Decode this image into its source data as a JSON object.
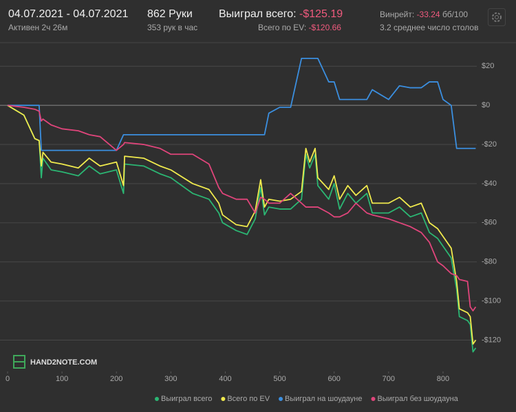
{
  "header": {
    "dates": "04.07.2021 - 04.07.2021",
    "active": "Активен 2ч 26м",
    "hands": "862 Руки",
    "rate": "353 рук в час",
    "won_label": "Выиграл всего:",
    "won_value": "-$125.19",
    "ev_label": "Всего по EV:",
    "ev_value": "-$120.66",
    "winrate_label": "Винрейт:",
    "winrate_value": "-33.24",
    "winrate_unit": "бб/100",
    "tables": "3.2 среднее число столов",
    "logo": "HAND2NOTE.COM"
  },
  "chart_data": {
    "type": "line",
    "x": [
      0,
      30,
      50,
      58,
      62,
      65,
      80,
      100,
      130,
      150,
      170,
      200,
      213,
      215,
      250,
      280,
      300,
      340,
      370,
      388,
      395,
      420,
      440,
      455,
      465,
      472,
      480,
      500,
      520,
      540,
      548,
      555,
      565,
      570,
      590,
      600,
      610,
      625,
      640,
      660,
      670,
      700,
      720,
      740,
      760,
      775,
      790,
      800,
      815,
      825,
      830,
      845,
      850,
      855,
      860
    ],
    "series": [
      {
        "name": "Выиграл всего",
        "color": "#2bb673",
        "values": [
          0,
          -5,
          -17,
          -18,
          -37,
          -27,
          -33,
          -34,
          -36,
          -31,
          -35,
          -33,
          -45,
          -30,
          -31,
          -35,
          -37,
          -45,
          -48,
          -55,
          -60,
          -64,
          -66,
          -58,
          -42,
          -56,
          -52,
          -53,
          -53,
          -48,
          -25,
          -32,
          -25,
          -41,
          -48,
          -40,
          -53,
          -45,
          -50,
          -45,
          -55,
          -55,
          -52,
          -57,
          -55,
          -65,
          -68,
          -72,
          -78,
          -94,
          -108,
          -110,
          -112,
          -126,
          -124
        ]
      },
      {
        "name": "Всего по EV",
        "color": "#f0ea4d",
        "values": [
          0,
          -5,
          -17,
          -18,
          -31,
          -24,
          -29,
          -30,
          -32,
          -27,
          -31,
          -29,
          -41,
          -26,
          -27,
          -31,
          -33,
          -40,
          -43,
          -50,
          -56,
          -61,
          -62,
          -54,
          -38,
          -52,
          -48,
          -49,
          -48,
          -44,
          -22,
          -29,
          -22,
          -37,
          -43,
          -36,
          -48,
          -41,
          -46,
          -41,
          -50,
          -50,
          -47,
          -52,
          -50,
          -60,
          -63,
          -67,
          -73,
          -90,
          -104,
          -106,
          -108,
          -122,
          -120
        ]
      },
      {
        "name": "Выиграл на шоудауне",
        "color": "#3b8fe0",
        "values": [
          0,
          0,
          0,
          0,
          -23,
          -23,
          -23,
          -23,
          -23,
          -23,
          -23,
          -23,
          -15,
          -15,
          -15,
          -15,
          -15,
          -15,
          -15,
          -15,
          -15,
          -15,
          -15,
          -15,
          -15,
          -15,
          -4,
          -1,
          -1,
          24,
          24,
          24,
          24,
          24,
          12,
          12,
          3,
          3,
          3,
          3,
          8,
          3,
          10,
          9,
          9,
          12,
          12,
          3,
          0,
          -22,
          -22,
          -22,
          -22,
          -22,
          -22
        ]
      },
      {
        "name": "Выиграл без шоудауна",
        "color": "#e0457b",
        "values": [
          0,
          -1,
          -2,
          -3,
          -8,
          -7,
          -10,
          -12,
          -13,
          -15,
          -16,
          -23,
          -20,
          -19,
          -20,
          -22,
          -25,
          -25,
          -30,
          -42,
          -45,
          -48,
          -48,
          -55,
          -47,
          -48,
          -50,
          -50,
          -45,
          -50,
          -52,
          -52,
          -52,
          -52,
          -55,
          -57,
          -57,
          -55,
          -50,
          -55,
          -56,
          -58,
          -60,
          -62,
          -65,
          -70,
          -80,
          -82,
          -86,
          -87,
          -89,
          -90,
          -103,
          -105,
          -103
        ]
      }
    ],
    "xlim": [
      0,
      862
    ],
    "xticks": [
      0,
      100,
      200,
      300,
      400,
      500,
      600,
      700,
      800
    ],
    "ylim": [
      -136,
      31
    ],
    "yticks": [
      {
        "value": 20,
        "label": "$20"
      },
      {
        "value": 0,
        "label": "$0"
      },
      {
        "value": -20,
        "label": "-$20"
      },
      {
        "value": -40,
        "label": "-$40"
      },
      {
        "value": -60,
        "label": "-$60"
      },
      {
        "value": -80,
        "label": "-$80"
      },
      {
        "value": -100,
        "label": "-$100"
      },
      {
        "value": -120,
        "label": "-$120"
      }
    ],
    "grid": true,
    "legend": "bottom"
  }
}
